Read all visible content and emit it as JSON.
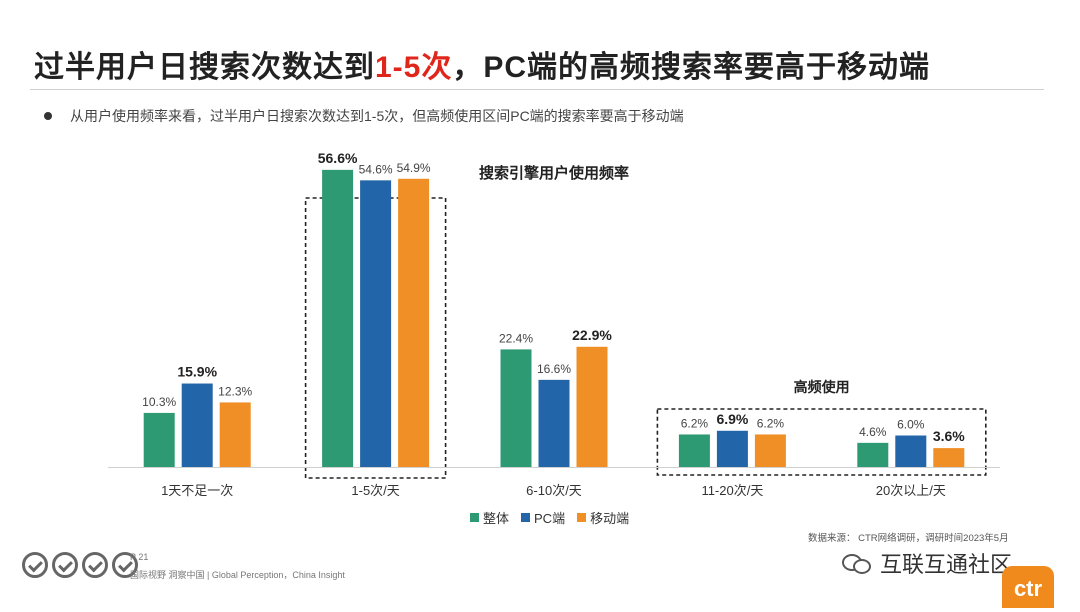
{
  "slide": {
    "headline_pre": "过半用户日搜索次数达到",
    "headline_highlight": "1-5次",
    "headline_post": "，PC端的高频搜索率要高于移动端",
    "bullet": "从用户使用频率来看，过半用户日搜索次数达到1-5次，但高频使用区间PC端的搜索率要高于移动端",
    "source": "数据来源：  CTR网络调研，调研时间2023年5月",
    "page_number": "P 21",
    "tagline": "国际视野  洞察中国 | Global Perception，China Insight",
    "watermark": "互联互通社区",
    "logo_text": "ctr"
  },
  "colors": {
    "overall": "#2e9a73",
    "pc": "#2265a8",
    "mobile": "#ef8f26",
    "highlight": "#e0261b"
  },
  "chart_data": {
    "type": "bar",
    "title": "搜索引擎用户使用频率",
    "categories": [
      "1天不足一次",
      "1-5次/天",
      "6-10次/天",
      "11-20次/天",
      "20次以上/天"
    ],
    "series": [
      {
        "name": "整体",
        "values": [
          10.3,
          56.6,
          22.4,
          6.2,
          4.6
        ],
        "labels": [
          "10.3%",
          "56.6%",
          "22.4%",
          "6.2%",
          "4.6%"
        ]
      },
      {
        "name": "PC端",
        "values": [
          15.9,
          54.6,
          16.6,
          6.9,
          6.0
        ],
        "labels": [
          "15.9%",
          "54.6%",
          "16.6%",
          "6.9%",
          "6.0%"
        ]
      },
      {
        "name": "移动端",
        "values": [
          12.3,
          54.9,
          22.9,
          6.2,
          3.6
        ],
        "labels": [
          "12.3%",
          "54.9%",
          "22.9%",
          "6.2%",
          "3.6%"
        ]
      }
    ],
    "bold_labels": [
      [
        false,
        true,
        false,
        false,
        false
      ],
      [
        true,
        false,
        false,
        true,
        false
      ],
      [
        false,
        false,
        true,
        false,
        true
      ]
    ],
    "annotation": "高频使用",
    "ylim": [
      0,
      60
    ],
    "legend_position": "bottom"
  }
}
